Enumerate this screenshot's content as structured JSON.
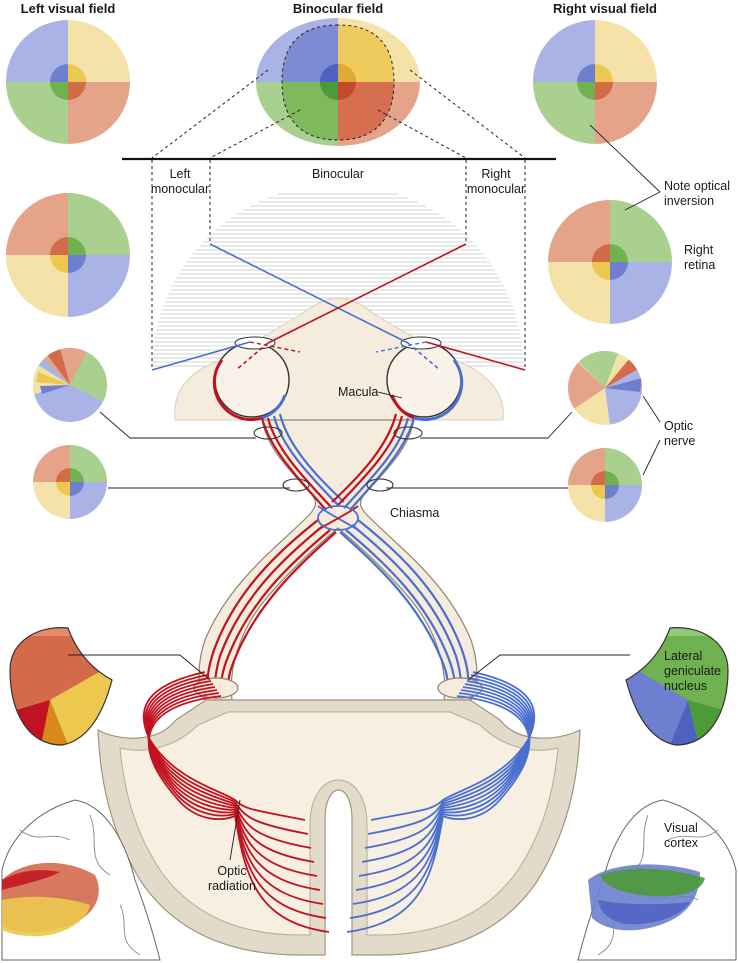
{
  "headers": {
    "left_field": "Left visual field",
    "binocular_field": "Binocular field",
    "right_field": "Right visual field"
  },
  "labels": {
    "left_monocular_1": "Left",
    "left_monocular_2": "monocular",
    "binocular": "Binocular",
    "right_monocular_1": "Right",
    "right_monocular_2": "monocular",
    "note_1": "Note optical",
    "note_2": "inversion",
    "right_retina_1": "Right",
    "right_retina_2": "retina",
    "macula": "Macula",
    "optic_nerve_1": "Optic",
    "optic_nerve_2": "nerve",
    "chiasma": "Chiasma",
    "lgn_1": "Lateral",
    "lgn_2": "geniculate",
    "lgn_3": "nucleus",
    "visual_cortex_1": "Visual",
    "visual_cortex_2": "cortex",
    "optic_radiation_1": "Optic",
    "optic_radiation_2": "radiation"
  },
  "colors": {
    "quadrant_blue": "#aab3e6",
    "quadrant_yellow": "#f5e2a8",
    "quadrant_green": "#a9d08e",
    "quadrant_red": "#e5a48a",
    "pathway_red": "#c1121f",
    "pathway_blue": "#4a6fd0",
    "tissue": "#f5ecde",
    "tissue_edge": "#d9d0bd"
  }
}
